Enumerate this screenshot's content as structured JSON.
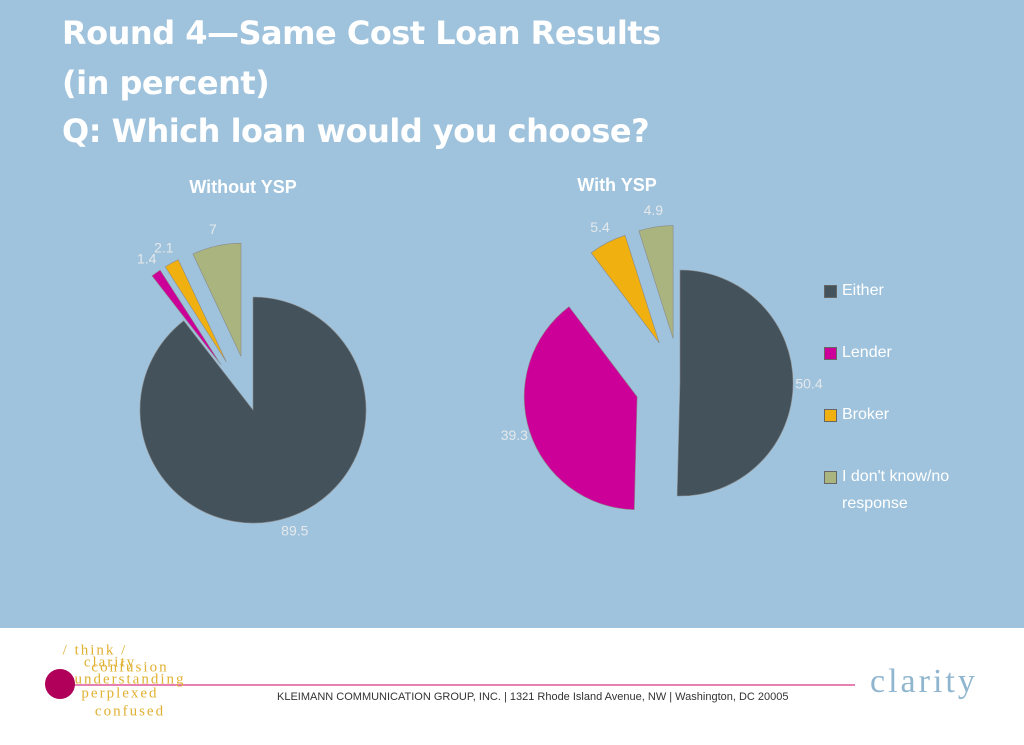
{
  "slide": {
    "title_lines": [
      "Round 4—Same Cost Loan Results",
      "(in percent)",
      "Q: Which loan would you choose?"
    ]
  },
  "chart_data": [
    {
      "type": "pie",
      "title": "Without YSP",
      "values": [
        89.5,
        1.4,
        2.1,
        7
      ],
      "colors": [
        "#44525c",
        "#cc0099",
        "#f0b010",
        "#a9b47f"
      ]
    },
    {
      "type": "pie",
      "title": "With YSP",
      "values": [
        50.4,
        39.3,
        5.4,
        4.9
      ],
      "colors": [
        "#44525c",
        "#cc0099",
        "#f0b010",
        "#a9b47f"
      ],
      "categories": [
        "Either",
        "Lender",
        "Broker",
        "I don't know/no response"
      ],
      "legend": "right"
    }
  ],
  "footer": {
    "text": "KLEIMANN COMMUNICATION GROUP, INC. | 1321 Rhode Island Avenue, NW | Washington, DC 20005",
    "brand": "clarity",
    "logo_words": [
      "/ think /",
      "clarity",
      "confusion",
      "understanding",
      "perplexed",
      "confused"
    ]
  }
}
